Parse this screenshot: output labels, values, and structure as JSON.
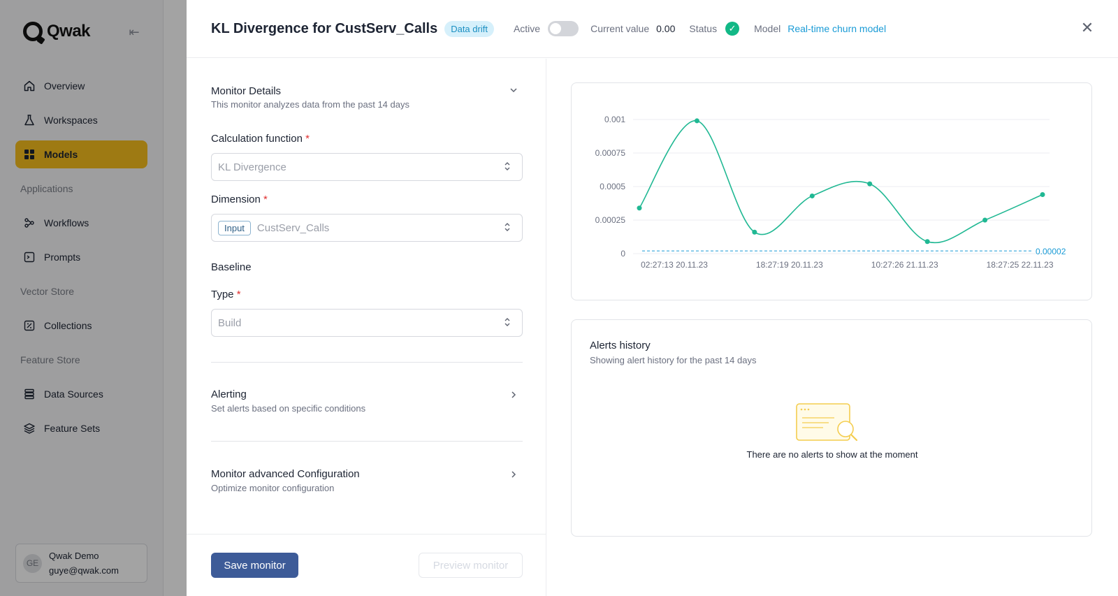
{
  "sidebar": {
    "brand": "Qwak",
    "items": [
      {
        "label": "Overview",
        "icon": "home-icon"
      },
      {
        "label": "Workspaces",
        "icon": "flask-icon"
      },
      {
        "label": "Models",
        "icon": "grid-icon"
      }
    ],
    "section_applications": "Applications",
    "applications": [
      {
        "label": "Workflows",
        "icon": "workflow-icon"
      },
      {
        "label": "Prompts",
        "icon": "prompt-icon"
      }
    ],
    "section_vector": "Vector Store",
    "vector": [
      {
        "label": "Collections",
        "icon": "collections-icon"
      }
    ],
    "section_feature": "Feature Store",
    "feature": [
      {
        "label": "Data Sources",
        "icon": "database-icon"
      },
      {
        "label": "Feature Sets",
        "icon": "layers-icon"
      }
    ],
    "user": {
      "initials": "GE",
      "name": "Qwak Demo",
      "email": "guye@qwak.com"
    }
  },
  "header": {
    "title": "KL Divergence for CustServ_Calls",
    "chip": "Data drift",
    "active_label": "Active",
    "current_value_label": "Current value",
    "current_value": "0.00",
    "status_label": "Status",
    "model_label": "Model",
    "model_link": "Real-time churn model"
  },
  "form": {
    "details_title": "Monitor Details",
    "details_sub": "This monitor analyzes data from the past 14 days",
    "calc_label": "Calculation function",
    "calc_value": "KL Divergence",
    "dimension_label": "Dimension",
    "dimension_tag": "Input",
    "dimension_value": "CustServ_Calls",
    "baseline_title": "Baseline",
    "type_label": "Type",
    "type_value": "Build",
    "required_mark": "*",
    "alerting_title": "Alerting",
    "alerting_sub": "Set alerts based on specific conditions",
    "advanced_title": "Monitor advanced Configuration",
    "advanced_sub": "Optimize monitor configuration",
    "save_button": "Save monitor",
    "preview_button": "Preview monitor"
  },
  "alerts": {
    "title": "Alerts history",
    "subtitle": "Showing alert history for the past 14 days",
    "empty_text": "There are no alerts to show at the moment"
  },
  "colors": {
    "accent": "#f8bf1f",
    "primary_button": "#3d5b98",
    "series_line": "#20b893",
    "threshold_line": "#1a9bd6"
  },
  "chart_data": {
    "type": "line",
    "title": "",
    "xlabel": "",
    "ylabel": "",
    "ylim": [
      0,
      0.001
    ],
    "y_ticks": [
      "0",
      "0.00025",
      "0.0005",
      "0.00075",
      "0.001"
    ],
    "y_tick_values": [
      0,
      0.00025,
      0.0005,
      0.00075,
      0.001
    ],
    "x_tick_labels": [
      "02:27:13 20.11.23",
      "18:27:19 20.11.23",
      "10:27:26 21.11.23",
      "18:27:25 22.11.23"
    ],
    "x_tick_index": [
      0,
      2,
      4,
      6
    ],
    "grid": true,
    "series": [
      {
        "values": [
          0.00034,
          0.00099,
          0.00016,
          0.00043,
          0.00052,
          9e-05,
          0.00025,
          0.00044
        ]
      }
    ],
    "threshold": {
      "value": 2e-05,
      "label": "0.00002"
    }
  }
}
